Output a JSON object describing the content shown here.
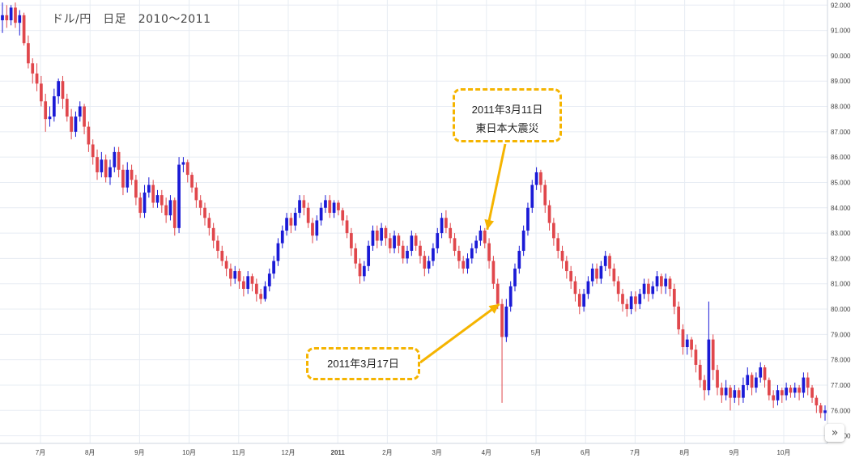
{
  "header": {
    "title": "ドル/円　日足　2010〜2011"
  },
  "annotations": [
    {
      "lines": [
        "2011年3月11日",
        "東日本大震災"
      ]
    },
    {
      "lines": [
        "2011年3月17日"
      ]
    }
  ],
  "nav": {
    "icon": "double-chevron-right-icon",
    "label": "»"
  },
  "colors": {
    "up": "#1a1ad6",
    "down": "#e0474c",
    "grid": "#e7ecf3",
    "annotation": "#f5b400",
    "axis_text": "#444444"
  },
  "chart_data": {
    "type": "candlestick",
    "title": "ドル/円　日足　2010〜2011",
    "ylim": [
      74.7,
      92.2
    ],
    "y_ticks": [
      "75.000",
      "76.000",
      "77.000",
      "78.000",
      "79.000",
      "80.000",
      "81.000",
      "82.000",
      "83.000",
      "84.000",
      "85.000",
      "86.000",
      "87.000",
      "88.000",
      "89.000",
      "90.000",
      "91.000",
      "92.000"
    ],
    "x_labels": [
      "7月",
      "8月",
      "9月",
      "10月",
      "11月",
      "12月",
      "2011",
      "2月",
      "3月",
      "4月",
      "5月",
      "6月",
      "7月",
      "8月",
      "9月",
      "10月"
    ],
    "grid": true,
    "series": [
      {
        "values": [
          [
            91.4,
            91.6,
            92.1,
            90.9
          ],
          [
            91.6,
            91.4,
            92.0,
            91.1
          ],
          [
            91.4,
            91.9,
            92.0,
            91.2
          ],
          [
            91.9,
            91.3,
            92.1,
            91.1
          ],
          [
            91.3,
            91.6,
            91.8,
            90.8
          ],
          [
            91.6,
            90.5,
            91.7,
            90.4
          ],
          [
            90.5,
            89.7,
            90.8,
            89.5
          ],
          [
            89.7,
            89.3,
            89.9,
            88.9
          ],
          [
            89.3,
            88.9,
            89.7,
            88.6
          ],
          [
            88.9,
            88.2,
            89.2,
            88.0
          ],
          [
            88.2,
            87.5,
            88.5,
            87.0
          ],
          [
            87.5,
            87.6,
            88.0,
            87.2
          ],
          [
            87.6,
            88.4,
            88.7,
            87.4
          ],
          [
            88.4,
            89.0,
            89.1,
            88.1
          ],
          [
            89.0,
            88.3,
            89.2,
            87.9
          ],
          [
            88.3,
            87.6,
            88.5,
            87.4
          ],
          [
            87.6,
            87.0,
            87.9,
            86.7
          ],
          [
            87.0,
            87.6,
            87.8,
            86.8
          ],
          [
            87.6,
            88.0,
            88.2,
            87.4
          ],
          [
            88.0,
            87.2,
            88.1,
            86.9
          ],
          [
            87.2,
            86.5,
            87.4,
            86.2
          ],
          [
            86.5,
            86.0,
            86.7,
            85.7
          ],
          [
            86.0,
            85.4,
            86.3,
            85.1
          ],
          [
            85.4,
            85.9,
            86.2,
            85.2
          ],
          [
            85.9,
            85.2,
            86.1,
            85.0
          ],
          [
            85.2,
            85.6,
            85.9,
            84.9
          ],
          [
            85.6,
            86.2,
            86.4,
            85.4
          ],
          [
            86.2,
            85.5,
            86.4,
            85.2
          ],
          [
            85.5,
            84.8,
            85.7,
            84.5
          ],
          [
            84.8,
            85.5,
            85.8,
            84.6
          ],
          [
            85.5,
            85.1,
            85.7,
            84.9
          ],
          [
            85.1,
            84.4,
            85.3,
            84.1
          ],
          [
            84.4,
            83.8,
            84.6,
            83.6
          ],
          [
            83.8,
            84.6,
            84.9,
            83.6
          ],
          [
            84.6,
            84.9,
            85.2,
            84.4
          ],
          [
            84.9,
            84.2,
            85.1,
            84.0
          ],
          [
            84.2,
            84.5,
            84.7,
            84.0
          ],
          [
            84.5,
            84.1,
            84.7,
            83.8
          ],
          [
            84.1,
            83.7,
            84.4,
            83.4
          ],
          [
            83.7,
            84.3,
            84.5,
            83.5
          ],
          [
            84.3,
            83.2,
            84.4,
            82.9
          ],
          [
            83.2,
            85.7,
            86.0,
            83.0
          ],
          [
            85.7,
            85.8,
            86.0,
            85.4
          ],
          [
            85.8,
            85.3,
            85.9,
            85.0
          ],
          [
            85.3,
            84.8,
            85.4,
            84.6
          ],
          [
            84.8,
            84.3,
            85.0,
            84.0
          ],
          [
            84.3,
            84.0,
            84.5,
            83.7
          ],
          [
            84.0,
            83.6,
            84.2,
            83.3
          ],
          [
            83.6,
            83.2,
            83.8,
            82.9
          ],
          [
            83.2,
            82.7,
            83.4,
            82.4
          ],
          [
            82.7,
            82.3,
            82.9,
            82.0
          ],
          [
            82.3,
            81.9,
            82.5,
            81.7
          ],
          [
            81.9,
            81.6,
            82.1,
            81.3
          ],
          [
            81.6,
            81.2,
            81.8,
            80.9
          ],
          [
            81.2,
            81.5,
            81.7,
            81.0
          ],
          [
            81.5,
            81.1,
            81.6,
            80.8
          ],
          [
            81.1,
            80.8,
            81.3,
            80.5
          ],
          [
            80.8,
            81.3,
            81.5,
            80.6
          ],
          [
            81.3,
            81.0,
            81.4,
            80.7
          ],
          [
            81.0,
            80.6,
            81.2,
            80.3
          ],
          [
            80.6,
            80.4,
            80.8,
            80.2
          ],
          [
            80.4,
            80.9,
            81.1,
            80.3
          ],
          [
            80.9,
            81.4,
            81.6,
            80.7
          ],
          [
            81.4,
            81.9,
            82.1,
            81.2
          ],
          [
            81.9,
            82.6,
            82.8,
            81.7
          ],
          [
            82.6,
            83.1,
            83.3,
            82.4
          ],
          [
            83.1,
            83.6,
            83.8,
            82.9
          ],
          [
            83.6,
            83.3,
            83.8,
            83.0
          ],
          [
            83.3,
            83.8,
            84.0,
            83.1
          ],
          [
            83.8,
            84.3,
            84.5,
            83.6
          ],
          [
            84.3,
            84.0,
            84.5,
            83.7
          ],
          [
            84.0,
            83.4,
            84.2,
            83.2
          ],
          [
            83.4,
            82.9,
            83.6,
            82.6
          ],
          [
            82.9,
            83.5,
            83.7,
            82.7
          ],
          [
            83.5,
            84.0,
            84.2,
            83.3
          ],
          [
            84.0,
            84.3,
            84.5,
            83.8
          ],
          [
            84.3,
            83.8,
            84.5,
            83.6
          ],
          [
            83.8,
            84.2,
            84.3,
            83.6
          ],
          [
            84.2,
            83.9,
            84.3,
            83.7
          ],
          [
            83.9,
            83.5,
            84.0,
            83.3
          ],
          [
            83.5,
            83.0,
            83.7,
            82.8
          ],
          [
            83.0,
            82.4,
            83.2,
            82.1
          ],
          [
            82.4,
            81.8,
            82.6,
            81.6
          ],
          [
            81.8,
            81.3,
            82.0,
            81.0
          ],
          [
            81.3,
            81.7,
            81.9,
            81.1
          ],
          [
            81.7,
            82.5,
            82.7,
            81.5
          ],
          [
            82.5,
            83.1,
            83.3,
            82.3
          ],
          [
            83.1,
            82.7,
            83.3,
            82.4
          ],
          [
            82.7,
            83.2,
            83.4,
            82.5
          ],
          [
            83.2,
            82.8,
            83.3,
            82.5
          ],
          [
            82.8,
            82.4,
            83.0,
            82.2
          ],
          [
            82.4,
            82.9,
            83.1,
            82.2
          ],
          [
            82.9,
            82.5,
            83.0,
            82.2
          ],
          [
            82.5,
            82.0,
            82.7,
            81.8
          ],
          [
            82.0,
            82.3,
            82.5,
            81.8
          ],
          [
            82.3,
            82.9,
            83.1,
            82.1
          ],
          [
            82.9,
            82.5,
            83.0,
            82.3
          ],
          [
            82.5,
            82.1,
            82.7,
            81.8
          ],
          [
            82.1,
            81.6,
            82.3,
            81.3
          ],
          [
            81.6,
            81.9,
            82.1,
            81.4
          ],
          [
            81.9,
            82.4,
            82.6,
            81.7
          ],
          [
            82.4,
            83.0,
            83.2,
            82.2
          ],
          [
            83.0,
            83.6,
            83.8,
            82.8
          ],
          [
            83.6,
            83.2,
            83.9,
            83.0
          ],
          [
            83.2,
            82.8,
            83.4,
            82.6
          ],
          [
            82.8,
            82.3,
            83.0,
            82.1
          ],
          [
            82.3,
            81.9,
            82.5,
            81.6
          ],
          [
            81.9,
            81.6,
            82.1,
            81.4
          ],
          [
            81.6,
            82.0,
            82.2,
            81.4
          ],
          [
            82.0,
            82.4,
            82.6,
            81.8
          ],
          [
            82.4,
            82.7,
            82.9,
            82.2
          ],
          [
            82.7,
            83.1,
            83.3,
            82.5
          ],
          [
            83.1,
            82.6,
            83.2,
            82.4
          ],
          [
            82.6,
            81.9,
            82.8,
            81.6
          ],
          [
            81.9,
            81.0,
            82.1,
            80.8
          ],
          [
            81.0,
            80.2,
            81.2,
            80.0
          ],
          [
            80.2,
            78.9,
            80.4,
            76.3
          ],
          [
            78.9,
            80.1,
            80.4,
            78.7
          ],
          [
            80.1,
            80.9,
            81.1,
            79.9
          ],
          [
            80.9,
            81.6,
            81.8,
            80.7
          ],
          [
            81.6,
            82.3,
            82.5,
            81.4
          ],
          [
            82.3,
            83.1,
            83.3,
            82.1
          ],
          [
            83.1,
            84.0,
            84.2,
            82.9
          ],
          [
            84.0,
            84.9,
            85.1,
            83.8
          ],
          [
            84.9,
            85.4,
            85.6,
            84.7
          ],
          [
            85.4,
            84.9,
            85.5,
            84.6
          ],
          [
            84.9,
            84.1,
            85.1,
            83.8
          ],
          [
            84.1,
            83.4,
            84.3,
            83.1
          ],
          [
            83.4,
            82.8,
            83.6,
            82.5
          ],
          [
            82.8,
            82.3,
            83.0,
            82.0
          ],
          [
            82.3,
            81.9,
            82.5,
            81.6
          ],
          [
            81.9,
            81.5,
            82.1,
            81.2
          ],
          [
            81.5,
            81.1,
            81.7,
            80.8
          ],
          [
            81.1,
            80.6,
            81.3,
            80.3
          ],
          [
            80.6,
            80.1,
            80.8,
            79.8
          ],
          [
            80.1,
            80.6,
            80.8,
            79.9
          ],
          [
            80.6,
            81.1,
            81.3,
            80.4
          ],
          [
            81.1,
            81.6,
            81.8,
            80.9
          ],
          [
            81.6,
            81.2,
            81.8,
            81.0
          ],
          [
            81.2,
            81.7,
            81.9,
            81.0
          ],
          [
            81.7,
            82.1,
            82.3,
            81.5
          ],
          [
            82.1,
            81.6,
            82.2,
            81.3
          ],
          [
            81.6,
            81.1,
            81.8,
            80.9
          ],
          [
            81.1,
            80.6,
            81.3,
            80.3
          ],
          [
            80.6,
            80.2,
            80.8,
            79.9
          ],
          [
            80.2,
            80.0,
            80.4,
            79.7
          ],
          [
            80.0,
            80.5,
            80.7,
            79.8
          ],
          [
            80.5,
            80.2,
            80.7,
            79.9
          ],
          [
            80.2,
            80.6,
            80.8,
            80.0
          ],
          [
            80.6,
            81.0,
            81.2,
            80.4
          ],
          [
            81.0,
            80.6,
            81.2,
            80.3
          ],
          [
            80.6,
            80.9,
            81.1,
            80.4
          ],
          [
            80.9,
            81.3,
            81.5,
            80.7
          ],
          [
            81.3,
            80.9,
            81.4,
            80.6
          ],
          [
            80.9,
            81.2,
            81.4,
            80.6
          ],
          [
            81.2,
            80.8,
            81.3,
            80.5
          ],
          [
            80.8,
            80.1,
            81.0,
            79.8
          ],
          [
            80.1,
            79.2,
            80.3,
            79.0
          ],
          [
            79.2,
            78.5,
            79.4,
            78.2
          ],
          [
            78.5,
            78.8,
            79.0,
            78.2
          ],
          [
            78.8,
            78.4,
            78.9,
            78.1
          ],
          [
            78.4,
            77.8,
            78.6,
            77.5
          ],
          [
            77.8,
            77.2,
            78.0,
            76.9
          ],
          [
            77.2,
            76.8,
            77.4,
            76.4
          ],
          [
            76.8,
            78.8,
            80.3,
            76.6
          ],
          [
            78.8,
            77.6,
            79.0,
            77.2
          ],
          [
            77.6,
            76.9,
            77.8,
            76.6
          ],
          [
            76.9,
            76.6,
            77.1,
            76.3
          ],
          [
            76.6,
            76.9,
            77.2,
            76.4
          ],
          [
            76.9,
            76.5,
            77.0,
            76.0
          ],
          [
            76.5,
            76.8,
            77.0,
            76.3
          ],
          [
            76.8,
            76.5,
            76.9,
            76.2
          ],
          [
            76.5,
            77.0,
            77.3,
            76.3
          ],
          [
            77.0,
            77.4,
            77.7,
            76.8
          ],
          [
            77.4,
            76.9,
            77.5,
            76.6
          ],
          [
            76.9,
            77.3,
            77.5,
            76.7
          ],
          [
            77.3,
            77.7,
            77.9,
            77.1
          ],
          [
            77.7,
            77.2,
            77.8,
            76.9
          ],
          [
            77.2,
            76.6,
            77.3,
            76.4
          ],
          [
            76.6,
            76.4,
            76.8,
            76.1
          ],
          [
            76.4,
            76.8,
            77.0,
            76.2
          ],
          [
            76.8,
            76.6,
            76.9,
            76.3
          ],
          [
            76.6,
            76.9,
            77.1,
            76.4
          ],
          [
            76.9,
            76.7,
            77.0,
            76.5
          ],
          [
            76.7,
            76.9,
            77.1,
            76.5
          ],
          [
            76.9,
            76.7,
            77.0,
            76.4
          ],
          [
            76.7,
            77.3,
            77.5,
            76.5
          ],
          [
            77.3,
            76.9,
            77.5,
            76.6
          ],
          [
            76.9,
            76.5,
            77.0,
            76.3
          ],
          [
            76.5,
            76.2,
            76.6,
            75.9
          ],
          [
            76.2,
            75.9,
            76.3,
            75.7
          ],
          [
            75.9,
            76.0,
            76.2,
            75.6
          ]
        ]
      }
    ]
  }
}
